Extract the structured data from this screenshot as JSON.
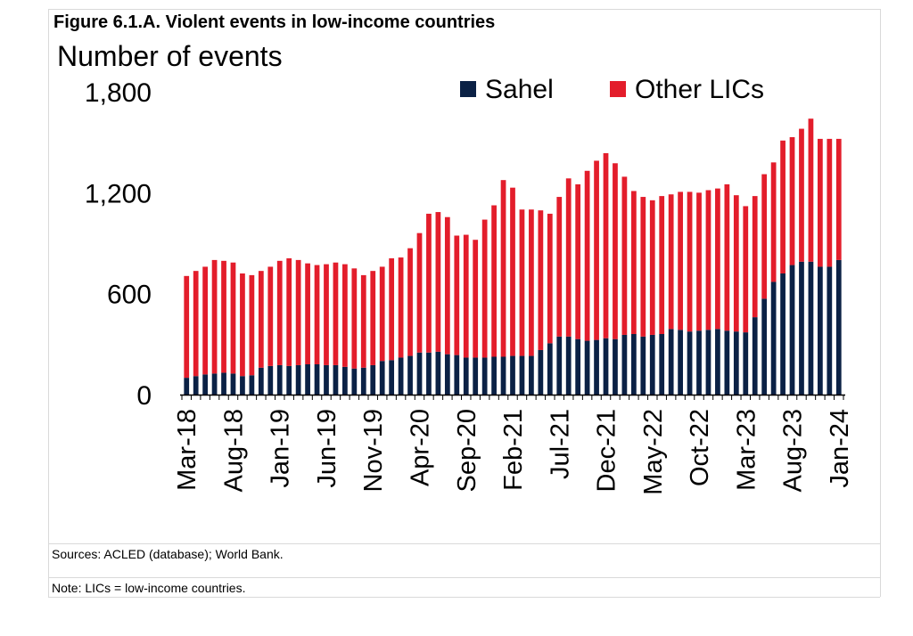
{
  "figure_title": "Figure 6.1.A. Violent events in low-income countries",
  "sources": "Sources: ACLED (database); World Bank.",
  "note": "Note: LICs = low-income countries.",
  "colors": {
    "sahel": "#0b2145",
    "other": "#e31d2b",
    "axis": "#000000",
    "grid": "#d9d9d9"
  },
  "chart_data": {
    "type": "bar",
    "stacked": true,
    "ylabel": "Number of events",
    "ylim": [
      0,
      1800
    ],
    "yticks": [
      0,
      600,
      1200,
      1800
    ],
    "ytick_labels": [
      "0",
      "600",
      "1,200",
      "1,800"
    ],
    "grid": false,
    "legend_position": "top-right",
    "x_tick_labels": [
      "Mar-18",
      "Aug-18",
      "Jan-19",
      "Jun-19",
      "Nov-19",
      "Apr-20",
      "Sep-20",
      "Feb-21",
      "Jul-21",
      "Dec-21",
      "May-22",
      "Oct-22",
      "Mar-23",
      "Aug-23",
      "Jan-24"
    ],
    "x_tick_every": 5,
    "categories": [
      "Mar-18",
      "Apr-18",
      "May-18",
      "Jun-18",
      "Jul-18",
      "Aug-18",
      "Sep-18",
      "Oct-18",
      "Nov-18",
      "Dec-18",
      "Jan-19",
      "Feb-19",
      "Mar-19",
      "Apr-19",
      "May-19",
      "Jun-19",
      "Jul-19",
      "Aug-19",
      "Sep-19",
      "Oct-19",
      "Nov-19",
      "Dec-19",
      "Jan-20",
      "Feb-20",
      "Mar-20",
      "Apr-20",
      "May-20",
      "Jun-20",
      "Jul-20",
      "Aug-20",
      "Sep-20",
      "Oct-20",
      "Nov-20",
      "Dec-20",
      "Jan-21",
      "Feb-21",
      "Mar-21",
      "Apr-21",
      "May-21",
      "Jun-21",
      "Jul-21",
      "Aug-21",
      "Sep-21",
      "Oct-21",
      "Nov-21",
      "Dec-21",
      "Jan-22",
      "Feb-22",
      "Mar-22",
      "Apr-22",
      "May-22",
      "Jun-22",
      "Jul-22",
      "Aug-22",
      "Sep-22",
      "Oct-22",
      "Nov-22",
      "Dec-22",
      "Jan-23",
      "Feb-23",
      "Mar-23",
      "Apr-23",
      "May-23",
      "Jun-23",
      "Jul-23",
      "Aug-23",
      "Sep-23",
      "Oct-23",
      "Nov-23",
      "Dec-23",
      "Jan-24"
    ],
    "series": [
      {
        "name": "Sahel",
        "values": [
          100,
          110,
          120,
          125,
          130,
          125,
          110,
          115,
          160,
          170,
          175,
          170,
          175,
          180,
          180,
          175,
          175,
          165,
          155,
          160,
          175,
          200,
          205,
          220,
          230,
          250,
          250,
          255,
          240,
          235,
          220,
          220,
          220,
          225,
          225,
          230,
          230,
          230,
          265,
          305,
          345,
          345,
          330,
          320,
          325,
          335,
          330,
          355,
          360,
          345,
          355,
          360,
          390,
          385,
          375,
          380,
          385,
          390,
          380,
          375,
          370,
          460,
          570,
          670,
          720,
          770,
          790,
          790,
          760,
          760,
          800
        ]
      },
      {
        "name": "Other LICs",
        "values": [
          605,
          625,
          640,
          675,
          665,
          660,
          610,
          595,
          575,
          590,
          620,
          640,
          625,
          600,
          590,
          600,
          610,
          610,
          595,
          550,
          560,
          560,
          605,
          595,
          640,
          710,
          825,
          830,
          815,
          710,
          730,
          700,
          820,
          900,
          1050,
          1000,
          870,
          870,
          830,
          770,
          830,
          940,
          920,
          1010,
          1065,
          1100,
          1045,
          940,
          850,
          830,
          800,
          820,
          800,
          820,
          830,
          820,
          830,
          835,
          870,
          810,
          750,
          720,
          740,
          710,
          790,
          760,
          790,
          850,
          760,
          760,
          720
        ]
      }
    ]
  }
}
